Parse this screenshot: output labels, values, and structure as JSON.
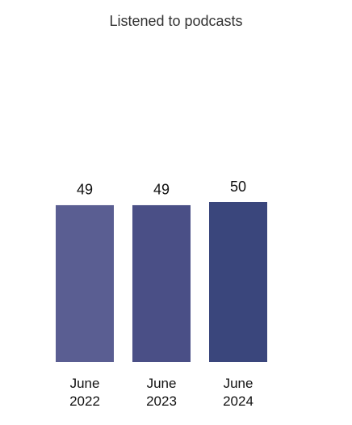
{
  "chart_data": {
    "type": "bar",
    "title": "Listened to podcasts",
    "categories": [
      "June 2022",
      "June 2023",
      "June 2024"
    ],
    "values": [
      49,
      49,
      50
    ],
    "colors": [
      "#5a5e92",
      "#4a4f86",
      "#3a467c"
    ],
    "ylim": [
      0,
      100
    ]
  }
}
